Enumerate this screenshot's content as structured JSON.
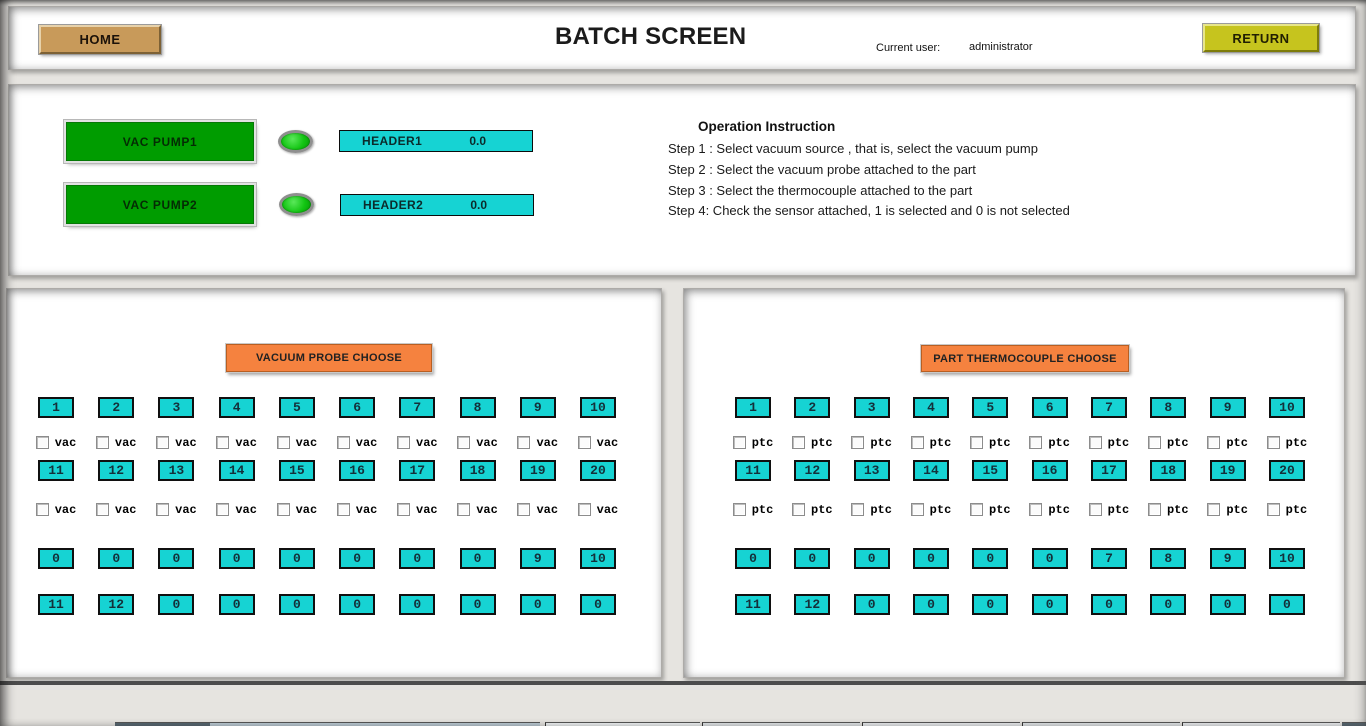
{
  "header": {
    "home_label": "HOME",
    "title": "BATCH SCREEN",
    "current_user_label": "Current user:",
    "current_user_value": "administrator",
    "return_label": "RETURN"
  },
  "pump_section": {
    "pump1_label": "VAC PUMP1",
    "pump2_label": "VAC PUMP2",
    "header1_label": "HEADER1",
    "header1_value": "0.0",
    "header2_label": "HEADER2",
    "header2_value": "0.0"
  },
  "instructions": {
    "title": "Operation Instruction",
    "steps": [
      "Step 1 : Select vacuum source , that is, select the vacuum pump",
      "Step 2 : Select the vacuum probe attached to the part",
      "Step 3 : Select the thermocouple attached to the part",
      "Step 4: Check the sensor attached, 1 is selected and 0 is not selected"
    ]
  },
  "vacuum_panel": {
    "title": "VACUUM PROBE CHOOSE",
    "numbers_row1": [
      "1",
      "2",
      "3",
      "4",
      "5",
      "6",
      "7",
      "8",
      "9",
      "10"
    ],
    "numbers_row2": [
      "11",
      "12",
      "13",
      "14",
      "15",
      "16",
      "17",
      "18",
      "19",
      "20"
    ],
    "checkbox_labels": [
      "vac",
      "vac",
      "vac",
      "vac",
      "vac",
      "vac",
      "vac",
      "vac",
      "vac",
      "vac"
    ],
    "values_row1": [
      "0",
      "0",
      "0",
      "0",
      "0",
      "0",
      "0",
      "0",
      "9",
      "10"
    ],
    "values_row2": [
      "11",
      "12",
      "0",
      "0",
      "0",
      "0",
      "0",
      "0",
      "0",
      "0"
    ]
  },
  "thermo_panel": {
    "title": "PART THERMOCOUPLE CHOOSE",
    "numbers_row1": [
      "1",
      "2",
      "3",
      "4",
      "5",
      "6",
      "7",
      "8",
      "9",
      "10"
    ],
    "numbers_row2": [
      "11",
      "12",
      "13",
      "14",
      "15",
      "16",
      "17",
      "18",
      "19",
      "20"
    ],
    "checkbox_labels": [
      "ptc",
      "ptc",
      "ptc",
      "ptc",
      "ptc",
      "ptc",
      "ptc",
      "ptc",
      "ptc",
      "ptc"
    ],
    "values_row1": [
      "0",
      "0",
      "0",
      "0",
      "0",
      "0",
      "7",
      "8",
      "9",
      "10"
    ],
    "values_row2": [
      "11",
      "12",
      "0",
      "0",
      "0",
      "0",
      "0",
      "0",
      "0",
      "0"
    ]
  },
  "colors": {
    "pump_green": "#009c00",
    "led_green": "#12c512",
    "display_cyan": "#16d3d3",
    "banner_orange": "#f5823f",
    "home_tan": "#c89a5a",
    "return_yellow": "#c6c41e",
    "background": "#e6e4e0"
  }
}
